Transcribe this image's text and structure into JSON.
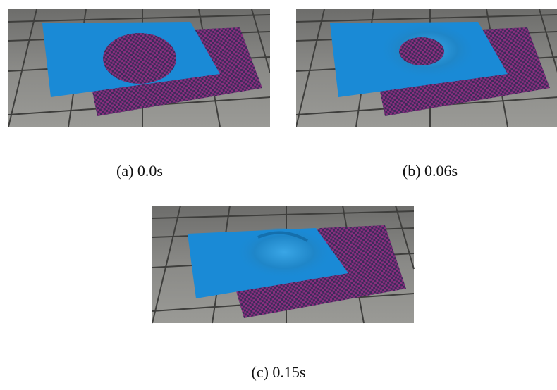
{
  "subfigures": [
    {
      "caption": "(a) 0.0s"
    },
    {
      "caption": "(b) 0.06s"
    },
    {
      "caption": "(c) 0.15s"
    }
  ]
}
